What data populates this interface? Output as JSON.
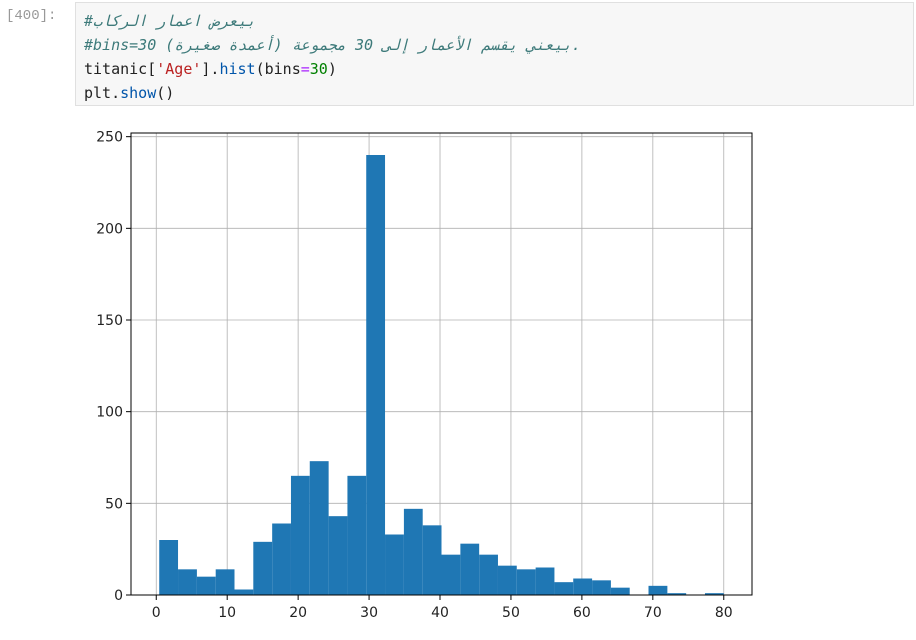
{
  "cell": {
    "prompt": "[400]:",
    "lines": [
      [
        {
          "text": "#بيعرض اعمار الركاب",
          "color": "#3d7a7a",
          "italic": true
        }
      ],
      [
        {
          "text": "#bins=30 بيعني يقسم الأعمار إلى 30 مجموعة (أعمدة صغيرة).",
          "color": "#3d7a7a",
          "italic": true
        }
      ],
      [
        {
          "text": "titanic[",
          "color": "#222222"
        },
        {
          "text": "'Age'",
          "color": "#ba2121"
        },
        {
          "text": "].",
          "color": "#222222"
        },
        {
          "text": "hist",
          "color": "#0055aa"
        },
        {
          "text": "(bins",
          "color": "#222222"
        },
        {
          "text": "=",
          "color": "#aa22ff"
        },
        {
          "text": "30",
          "color": "#008000"
        },
        {
          "text": ")",
          "color": "#222222"
        }
      ],
      [
        {
          "text": "plt.",
          "color": "#222222"
        },
        {
          "text": "show",
          "color": "#0055aa"
        },
        {
          "text": "()",
          "color": "#222222"
        }
      ]
    ]
  },
  "chart_data": {
    "type": "histogram",
    "color": "#1f77b4",
    "grid": true,
    "bins": [
      0.42,
      3.07,
      5.73,
      8.38,
      11.03,
      13.68,
      16.34,
      18.99,
      21.64,
      24.3,
      26.95,
      29.6,
      32.25,
      34.91,
      37.56,
      40.21,
      42.87,
      45.52,
      48.17,
      50.82,
      53.48,
      56.13,
      58.78,
      61.44,
      64.09,
      66.74,
      69.39,
      72.05,
      74.7,
      77.35,
      80.0
    ],
    "values": [
      30,
      14,
      10,
      14,
      3,
      29,
      39,
      65,
      73,
      43,
      65,
      240,
      33,
      47,
      38,
      22,
      28,
      22,
      16,
      14,
      15,
      7,
      9,
      8,
      4,
      0,
      5,
      1,
      0,
      1
    ],
    "xlim": [
      -3.56,
      83.98
    ],
    "ylim": [
      0,
      252
    ],
    "xticks": [
      0,
      10,
      20,
      30,
      40,
      50,
      60,
      70,
      80
    ],
    "yticks": [
      0,
      50,
      100,
      150,
      200,
      250
    ]
  }
}
